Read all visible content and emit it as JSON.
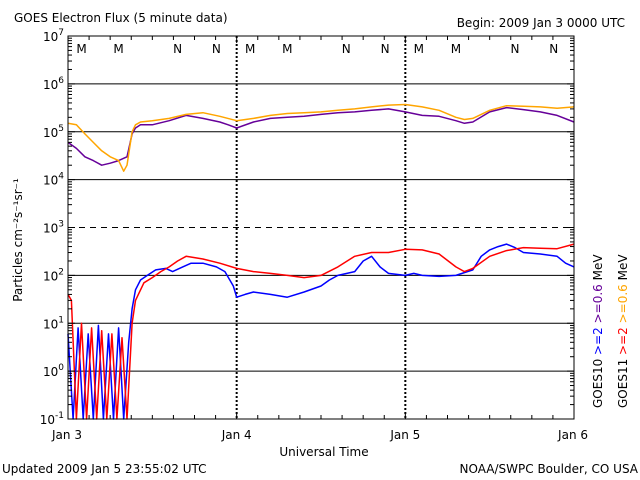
{
  "header": {
    "title": "GOES Electron Flux (5 minute data)",
    "begin": "Begin: 2009 Jan 3 0000 UTC"
  },
  "footer": {
    "updated": "Updated 2009 Jan  5 23:55:02 UTC",
    "credit": "NOAA/SWPC Boulder, CO USA"
  },
  "colors": {
    "goes10_2mev": "#0000ff",
    "goes10_06mev": "#660099",
    "goes11_2mev": "#ff0000",
    "goes11_06mev": "#ffa500",
    "marker_m": "#ff0000",
    "marker_n": "#0000ff"
  },
  "chart_data": {
    "type": "line",
    "title": "GOES Electron Flux (5 minute data)",
    "xlabel": "Universal Time",
    "ylabel": "Particles cm⁻²s⁻¹sr⁻¹",
    "x_unit": "days since 2009 Jan 3 0000 UTC",
    "xlim": [
      0,
      3
    ],
    "ylim": [
      0.1,
      10000000
    ],
    "yscale": "log",
    "x_ticks": [
      {
        "x": 0,
        "label": "Jan 3"
      },
      {
        "x": 1,
        "label": "Jan 4"
      },
      {
        "x": 2,
        "label": "Jan 5"
      },
      {
        "x": 3,
        "label": "Jan 6"
      }
    ],
    "y_ticks": [
      {
        "exp": -1,
        "base": "10",
        "sup": "-1"
      },
      {
        "exp": 0,
        "base": "10",
        "sup": "0"
      },
      {
        "exp": 1,
        "base": "10",
        "sup": "1"
      },
      {
        "exp": 2,
        "base": "10",
        "sup": "2"
      },
      {
        "exp": 3,
        "base": "10",
        "sup": "3"
      },
      {
        "exp": 4,
        "base": "10",
        "sup": "4"
      },
      {
        "exp": 5,
        "base": "10",
        "sup": "5"
      },
      {
        "exp": 6,
        "base": "10",
        "sup": "6"
      },
      {
        "exp": 7,
        "base": "10",
        "sup": "7"
      }
    ],
    "threshold_dashed_y": 1000,
    "local_time_markers": [
      {
        "x": 0.08,
        "label": "M",
        "color": "#0000ff"
      },
      {
        "x": 0.3,
        "label": "M",
        "color": "#ff0000"
      },
      {
        "x": 0.65,
        "label": "N",
        "color": "#0000ff"
      },
      {
        "x": 0.88,
        "label": "N",
        "color": "#ff0000"
      },
      {
        "x": 1.08,
        "label": "M",
        "color": "#0000ff"
      },
      {
        "x": 1.3,
        "label": "M",
        "color": "#ff0000"
      },
      {
        "x": 1.65,
        "label": "N",
        "color": "#0000ff"
      },
      {
        "x": 1.88,
        "label": "N",
        "color": "#ff0000"
      },
      {
        "x": 2.08,
        "label": "M",
        "color": "#0000ff"
      },
      {
        "x": 2.3,
        "label": "M",
        "color": "#ff0000"
      },
      {
        "x": 2.65,
        "label": "N",
        "color": "#0000ff"
      },
      {
        "x": 2.88,
        "label": "N",
        "color": "#ff0000"
      }
    ],
    "legend": {
      "placement": "right",
      "col1": [
        {
          "text": "GOES10",
          "color": "#000000"
        },
        {
          "text": ">=2",
          "color": "#0000ff"
        },
        {
          "text": ">=0.6",
          "color": "#660099"
        },
        {
          "text": "MeV",
          "color": "#000000"
        }
      ],
      "col2": [
        {
          "text": "GOES11",
          "color": "#000000"
        },
        {
          "text": ">=2",
          "color": "#ff0000"
        },
        {
          "text": ">=0.6",
          "color": "#ffa500"
        },
        {
          "text": "MeV",
          "color": "#000000"
        }
      ]
    },
    "series": [
      {
        "name": "GOES10 >=0.6 MeV",
        "color": "#660099",
        "x": [
          0.0,
          0.05,
          0.1,
          0.15,
          0.2,
          0.25,
          0.3,
          0.35,
          0.38,
          0.4,
          0.43,
          0.5,
          0.6,
          0.7,
          0.8,
          0.9,
          0.95,
          1.0,
          1.1,
          1.2,
          1.3,
          1.4,
          1.5,
          1.6,
          1.7,
          1.8,
          1.9,
          2.0,
          2.1,
          2.2,
          2.3,
          2.35,
          2.4,
          2.5,
          2.6,
          2.7,
          2.8,
          2.9,
          3.0
        ],
        "y": [
          60000,
          45000,
          30000,
          25000,
          20000,
          22000,
          25000,
          30000,
          90000,
          120000,
          140000,
          140000,
          170000,
          220000,
          190000,
          160000,
          140000,
          120000,
          160000,
          190000,
          200000,
          210000,
          230000,
          250000,
          260000,
          280000,
          300000,
          260000,
          220000,
          210000,
          170000,
          150000,
          160000,
          260000,
          320000,
          290000,
          260000,
          220000,
          160000
        ]
      },
      {
        "name": "GOES11 >=0.6 MeV",
        "color": "#ffa500",
        "x": [
          0.0,
          0.05,
          0.1,
          0.15,
          0.2,
          0.25,
          0.3,
          0.33,
          0.35,
          0.38,
          0.4,
          0.43,
          0.5,
          0.6,
          0.7,
          0.8,
          0.9,
          1.0,
          1.1,
          1.2,
          1.3,
          1.4,
          1.5,
          1.6,
          1.7,
          1.8,
          1.9,
          2.0,
          2.1,
          2.2,
          2.3,
          2.35,
          2.4,
          2.5,
          2.6,
          2.7,
          2.8,
          2.9,
          3.0
        ],
        "y": [
          150000,
          140000,
          90000,
          60000,
          40000,
          30000,
          25000,
          15000,
          20000,
          100000,
          140000,
          160000,
          170000,
          190000,
          230000,
          250000,
          210000,
          170000,
          190000,
          220000,
          240000,
          250000,
          260000,
          280000,
          300000,
          330000,
          360000,
          370000,
          330000,
          280000,
          200000,
          180000,
          190000,
          280000,
          350000,
          340000,
          330000,
          310000,
          330000
        ]
      },
      {
        "name": "GOES10 >=2 MeV",
        "color": "#0000ff",
        "x": [
          0.0,
          0.03,
          0.06,
          0.09,
          0.12,
          0.15,
          0.18,
          0.21,
          0.24,
          0.27,
          0.3,
          0.33,
          0.36,
          0.38,
          0.4,
          0.43,
          0.47,
          0.52,
          0.58,
          0.62,
          0.68,
          0.73,
          0.8,
          0.88,
          0.93,
          0.98,
          1.0,
          1.05,
          1.1,
          1.2,
          1.3,
          1.4,
          1.5,
          1.55,
          1.6,
          1.7,
          1.75,
          1.8,
          1.85,
          1.9,
          2.0,
          2.05,
          2.1,
          2.2,
          2.3,
          2.4,
          2.45,
          2.5,
          2.55,
          2.6,
          2.65,
          2.7,
          2.8,
          2.9,
          2.95,
          3.0
        ],
        "y": [
          6,
          0.1,
          8,
          0.1,
          6,
          0.1,
          9,
          0.1,
          6,
          0.1,
          8,
          0.1,
          4,
          20,
          50,
          80,
          100,
          130,
          140,
          120,
          150,
          180,
          180,
          150,
          120,
          60,
          35,
          40,
          45,
          40,
          35,
          45,
          60,
          80,
          100,
          120,
          200,
          250,
          150,
          110,
          100,
          110,
          100,
          95,
          100,
          130,
          250,
          340,
          400,
          450,
          380,
          300,
          280,
          250,
          180,
          150
        ]
      },
      {
        "name": "GOES11 >=2 MeV",
        "color": "#ff0000",
        "x": [
          0.0,
          0.02,
          0.05,
          0.08,
          0.11,
          0.14,
          0.17,
          0.2,
          0.23,
          0.26,
          0.29,
          0.32,
          0.35,
          0.38,
          0.4,
          0.45,
          0.5,
          0.55,
          0.6,
          0.65,
          0.7,
          0.8,
          0.9,
          1.0,
          1.1,
          1.2,
          1.3,
          1.4,
          1.5,
          1.6,
          1.7,
          1.8,
          1.9,
          2.0,
          2.1,
          2.2,
          2.3,
          2.35,
          2.4,
          2.5,
          2.6,
          2.7,
          2.8,
          2.9,
          3.0
        ],
        "y": [
          40,
          30,
          0.1,
          10,
          0.1,
          8,
          0.1,
          7,
          0.1,
          6,
          0.1,
          5,
          0.1,
          10,
          30,
          70,
          90,
          120,
          150,
          200,
          250,
          220,
          180,
          140,
          120,
          110,
          100,
          90,
          100,
          150,
          250,
          300,
          300,
          350,
          340,
          280,
          150,
          120,
          140,
          250,
          330,
          380,
          370,
          360,
          450
        ]
      }
    ]
  }
}
